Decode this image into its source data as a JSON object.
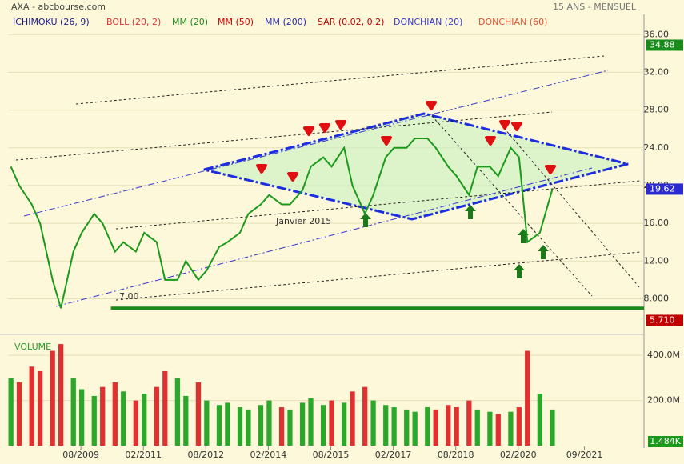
{
  "chart_data": {
    "type": "line",
    "title": "AXA - abcbourse.com",
    "subtitle": "15 ANS - MENSUEL",
    "legend": [
      {
        "name": "ICHIMOKU (26, 9)",
        "color": "#1a1a8a"
      },
      {
        "name": "BOLL (20, 2)",
        "color": "#e03030"
      },
      {
        "name": "MM (20)",
        "color": "#1a8a1a"
      },
      {
        "name": "MM (50)",
        "color": "#e00000"
      },
      {
        "name": "MM (200)",
        "color": "#2a2ab0"
      },
      {
        "name": "SAR (0.02, 0.2)",
        "color": "#c00000"
      },
      {
        "name": "DONCHIAN (20)",
        "color": "#3a3ad0"
      },
      {
        "name": "DONCHIAN (60)",
        "color": "#e05030"
      }
    ],
    "x": [
      2007.9,
      2008.1,
      2008.4,
      2008.6,
      2008.9,
      2009.1,
      2009.4,
      2009.6,
      2009.9,
      2010.1,
      2010.4,
      2010.6,
      2010.9,
      2011.1,
      2011.4,
      2011.6,
      2011.9,
      2012.1,
      2012.4,
      2012.6,
      2012.9,
      2013.1,
      2013.4,
      2013.6,
      2013.9,
      2014.1,
      2014.4,
      2014.6,
      2014.9,
      2015.1,
      2015.4,
      2015.6,
      2015.9,
      2016.1,
      2016.4,
      2016.6,
      2016.9,
      2017.1,
      2017.4,
      2017.6,
      2017.9,
      2018.1,
      2018.4,
      2018.6,
      2018.9,
      2019.1,
      2019.4,
      2019.6,
      2019.9,
      2020.1,
      2020.3,
      2020.6,
      2020.9
    ],
    "series": [
      {
        "name": "AXA",
        "color": "#1a9a1a",
        "values": [
          22,
          20,
          18,
          16,
          10,
          7,
          13,
          15,
          17,
          16,
          13,
          14,
          13,
          15,
          14,
          10,
          10,
          12,
          10,
          11,
          13.5,
          14,
          15,
          17,
          18,
          19,
          18,
          18,
          19.5,
          22,
          23,
          22,
          24,
          20,
          17,
          19,
          23,
          24,
          24,
          25,
          25,
          24,
          22,
          21,
          19,
          22,
          22,
          21,
          24,
          23,
          14,
          15,
          19.62
        ]
      }
    ],
    "volume": {
      "name": "VOLUME",
      "up_color": "#2aa82a",
      "down_color": "#e03030",
      "values": [
        300,
        280,
        350,
        330,
        420,
        450,
        300,
        250,
        220,
        260,
        280,
        240,
        200,
        230,
        260,
        330,
        300,
        220,
        280,
        200,
        180,
        190,
        170,
        160,
        180,
        200,
        170,
        160,
        190,
        210,
        180,
        200,
        190,
        240,
        260,
        200,
        180,
        170,
        160,
        150,
        170,
        160,
        180,
        170,
        200,
        160,
        150,
        140,
        150,
        170,
        420,
        230,
        160
      ],
      "ylim": [
        0,
        468
      ],
      "yticks": [
        {
          "value": 200,
          "label": "200.0M"
        },
        {
          "value": 400,
          "label": "400.0M"
        }
      ],
      "last_label": "1.484K"
    },
    "xlim": [
      2007.83,
      2023.1
    ],
    "xticks": [
      {
        "value": 2009.58,
        "label": "08/2009"
      },
      {
        "value": 2011.08,
        "label": "02/2011"
      },
      {
        "value": 2012.58,
        "label": "08/2012"
      },
      {
        "value": 2014.08,
        "label": "02/2014"
      },
      {
        "value": 2015.58,
        "label": "08/2015"
      },
      {
        "value": 2017.08,
        "label": "02/2017"
      },
      {
        "value": 2018.58,
        "label": "08/2018"
      },
      {
        "value": 2020.08,
        "label": "02/2020"
      },
      {
        "value": 2021.67,
        "label": "09/2021"
      }
    ],
    "ylim": [
      4.9,
      36.7
    ],
    "yticks": [
      {
        "value": 8,
        "label": "8.000"
      },
      {
        "value": 12,
        "label": "12.00"
      },
      {
        "value": 16,
        "label": "16.00"
      },
      {
        "value": 20,
        "label": "20.00"
      },
      {
        "value": 24,
        "label": "24.00"
      },
      {
        "value": 28,
        "label": "28.00"
      },
      {
        "value": 32,
        "label": "32.00"
      },
      {
        "value": 36,
        "label": "36.00"
      }
    ],
    "price_labels": [
      {
        "value": 34.88,
        "color": "#1a8a1a"
      },
      {
        "value": 19.62,
        "color": "#2a2ad0"
      },
      {
        "value": 5.71,
        "label": "5.710",
        "color": "#c00000"
      }
    ],
    "support": {
      "value": 7,
      "label": "7.00",
      "color": "#1a8a1a"
    },
    "annotation": "Janvier 2015"
  }
}
